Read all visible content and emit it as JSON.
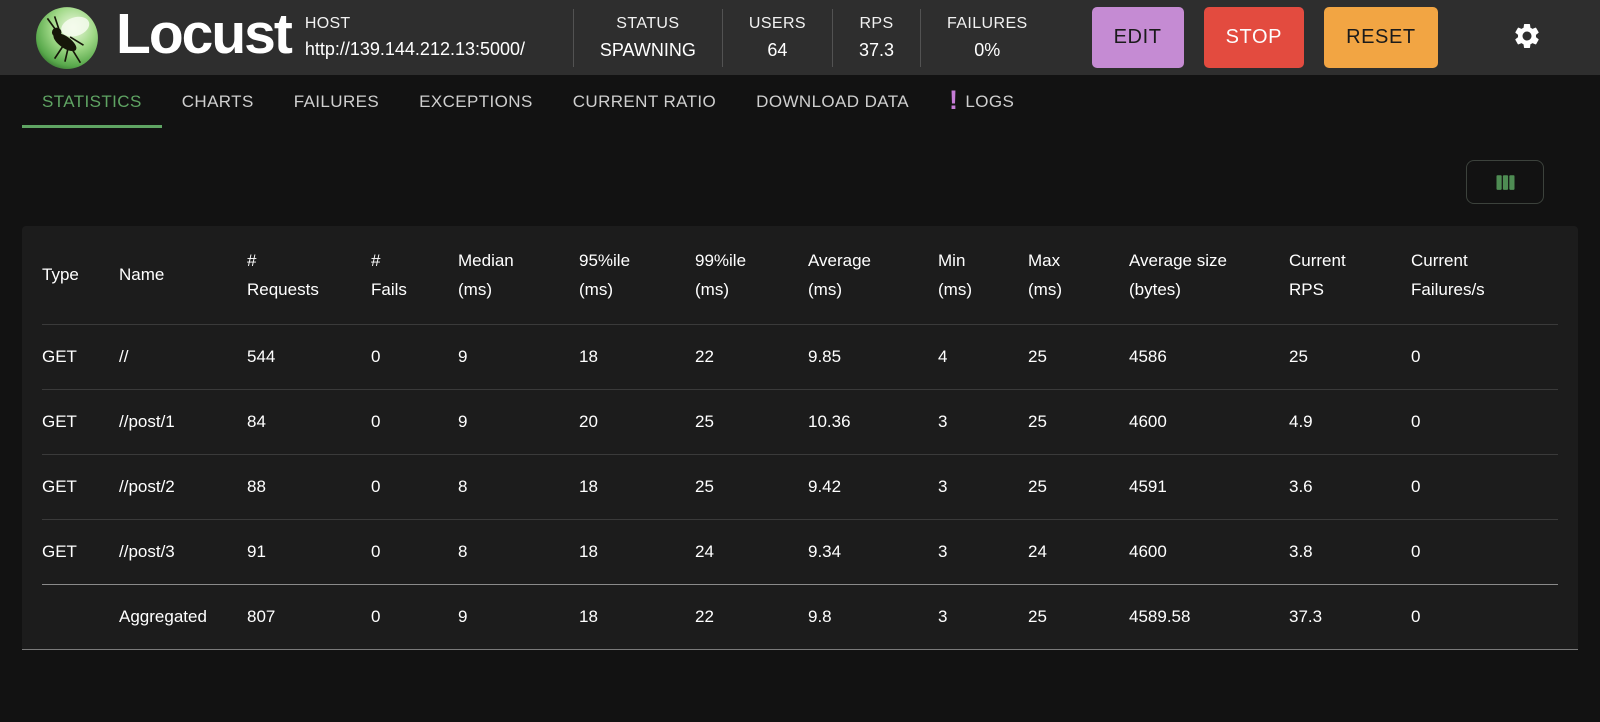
{
  "header": {
    "app_name": "Locust",
    "host": {
      "label": "HOST",
      "url": "http://139.144.212.13:5000/"
    },
    "stats": [
      {
        "label": "STATUS",
        "value": "SPAWNING"
      },
      {
        "label": "USERS",
        "value": "64"
      },
      {
        "label": "RPS",
        "value": "37.3"
      },
      {
        "label": "FAILURES",
        "value": "0%"
      }
    ],
    "buttons": {
      "edit": "EDIT",
      "stop": "STOP",
      "reset": "RESET"
    },
    "colors": {
      "edit": "#c58bd3",
      "stop": "#e34b3f",
      "reset": "#f2a543"
    }
  },
  "tabs": {
    "active_index": 0,
    "accent_color": "#5fa463",
    "items": [
      {
        "label": "STATISTICS"
      },
      {
        "label": "CHARTS"
      },
      {
        "label": "FAILURES"
      },
      {
        "label": "EXCEPTIONS"
      },
      {
        "label": "CURRENT RATIO"
      },
      {
        "label": "DOWNLOAD DATA"
      },
      {
        "label": "LOGS",
        "badge": "!",
        "badge_color": "#c57bd6"
      }
    ]
  },
  "toolbar": {
    "column_selector_icon": "view-columns-icon",
    "icon_color": "#4e8c53"
  },
  "table": {
    "columns": [
      {
        "line1": "Type",
        "line2": ""
      },
      {
        "line1": "Name",
        "line2": ""
      },
      {
        "line1": "#",
        "line2": "Requests"
      },
      {
        "line1": "#",
        "line2": "Fails"
      },
      {
        "line1": "Median",
        "line2": "(ms)"
      },
      {
        "line1": "95%ile",
        "line2": "(ms)"
      },
      {
        "line1": "99%ile",
        "line2": "(ms)"
      },
      {
        "line1": "Average",
        "line2": "(ms)"
      },
      {
        "line1": "Min",
        "line2": "(ms)"
      },
      {
        "line1": "Max",
        "line2": "(ms)"
      },
      {
        "line1": "Average size",
        "line2": "(bytes)"
      },
      {
        "line1": "Current",
        "line2": "RPS"
      },
      {
        "line1": "Current",
        "line2": "Failures/s"
      }
    ],
    "rows": [
      [
        "GET",
        "//",
        "544",
        "0",
        "9",
        "18",
        "22",
        "9.85",
        "4",
        "25",
        "4586",
        "25",
        "0"
      ],
      [
        "GET",
        "//post/1",
        "84",
        "0",
        "9",
        "20",
        "25",
        "10.36",
        "3",
        "25",
        "4600",
        "4.9",
        "0"
      ],
      [
        "GET",
        "//post/2",
        "88",
        "0",
        "8",
        "18",
        "25",
        "9.42",
        "3",
        "25",
        "4591",
        "3.6",
        "0"
      ],
      [
        "GET",
        "//post/3",
        "91",
        "0",
        "8",
        "18",
        "24",
        "9.34",
        "3",
        "24",
        "4600",
        "3.8",
        "0"
      ]
    ],
    "total_row": [
      "",
      "Aggregated",
      "807",
      "0",
      "9",
      "18",
      "22",
      "9.8",
      "3",
      "25",
      "4589.58",
      "37.3",
      "0"
    ]
  }
}
